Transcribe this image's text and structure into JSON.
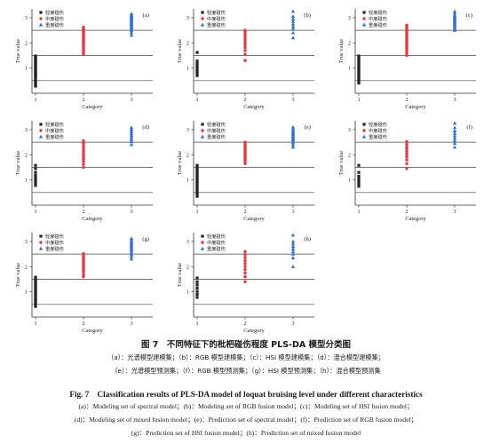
{
  "colors": {
    "light": "#222222",
    "moderate": "#e8343a",
    "severe": "#2f6fd8",
    "axis": "#333333",
    "ref_line": "#444444"
  },
  "legend": [
    "轻度碰伤",
    "中度碰伤",
    "重度碰伤"
  ],
  "chart_data": [
    {
      "type": "scatter",
      "panel": "(a)",
      "xlabel": "Category",
      "ylabel": "True value",
      "categories": [
        "1",
        "2",
        "3"
      ],
      "ylim": [
        0,
        3.35
      ],
      "yticks": [
        "1",
        "2",
        "3"
      ],
      "reference_lines": [
        0.5,
        1.5,
        2.5
      ],
      "legend": [
        "轻度碰伤",
        "中度碰伤",
        "重度碰伤"
      ],
      "series": [
        {
          "name": "轻度碰伤",
          "x": 1,
          "values": [
            0.28,
            0.35,
            0.42,
            0.48,
            0.53,
            0.58,
            0.62,
            0.66,
            0.7,
            0.74,
            0.78,
            0.82,
            0.86,
            0.9,
            0.94,
            0.98,
            1.02,
            1.06,
            1.1,
            1.14,
            1.18,
            1.22,
            1.26,
            1.3,
            1.34,
            1.38,
            1.42,
            1.45,
            1.48
          ]
        },
        {
          "name": "中度碰伤",
          "x": 2,
          "values": [
            1.55,
            1.63,
            1.72,
            1.8,
            1.86,
            1.92,
            1.97,
            2.02,
            2.06,
            2.1,
            2.14,
            2.18,
            2.22,
            2.26,
            2.3,
            2.34,
            2.38,
            2.42,
            2.46,
            2.5,
            2.54,
            2.58,
            2.62
          ]
        },
        {
          "name": "重度碰伤",
          "x": 3,
          "values": [
            2.3,
            2.4,
            2.48,
            2.55,
            2.6,
            2.65,
            2.7,
            2.74,
            2.78,
            2.82,
            2.86,
            2.9,
            2.94,
            2.98,
            3.02,
            3.06,
            3.1,
            3.16
          ]
        }
      ]
    },
    {
      "type": "scatter",
      "panel": "(b)",
      "xlabel": "Category",
      "ylabel": "True value",
      "categories": [
        "1",
        "2",
        "3"
      ],
      "ylim": [
        0,
        3.35
      ],
      "yticks": [
        "1",
        "2",
        "3"
      ],
      "reference_lines": [
        0.5,
        1.5,
        2.5
      ],
      "legend": [
        "轻度碰伤",
        "中度碰伤",
        "重度碰伤"
      ],
      "series": [
        {
          "name": "轻度碰伤",
          "x": 1,
          "values": [
            0.7,
            0.8,
            0.9,
            1.0,
            1.08,
            1.18,
            1.28,
            1.62
          ]
        },
        {
          "name": "中度碰伤",
          "x": 2,
          "values": [
            1.3,
            1.55,
            1.7,
            1.82,
            1.92,
            2.02,
            2.12,
            2.22,
            2.32,
            2.42,
            2.5
          ]
        },
        {
          "name": "重度碰伤",
          "x": 3,
          "values": [
            2.2,
            2.4,
            2.55,
            2.65,
            2.75,
            2.85,
            2.95,
            3.05,
            3.25
          ]
        }
      ]
    },
    {
      "type": "scatter",
      "panel": "(c)",
      "xlabel": "Category",
      "ylabel": "True value",
      "categories": [
        "1",
        "2",
        "3"
      ],
      "ylim": [
        0,
        3.35
      ],
      "yticks": [
        "1",
        "2",
        "3"
      ],
      "reference_lines": [
        0.5,
        1.5,
        2.5
      ],
      "legend": [
        "轻度碰伤",
        "中度碰伤",
        "重度碰伤"
      ],
      "series": [
        {
          "name": "轻度碰伤",
          "x": 1,
          "values": [
            0.4,
            0.46,
            0.52,
            0.58,
            0.64,
            0.7,
            0.76,
            0.82,
            0.88,
            0.94,
            1.0,
            1.06,
            1.12,
            1.18,
            1.24,
            1.3,
            1.36,
            1.42,
            1.48
          ]
        },
        {
          "name": "中度碰伤",
          "x": 2,
          "values": [
            1.5,
            1.58,
            1.66,
            1.74,
            1.8,
            1.86,
            1.92,
            1.98,
            2.04,
            2.1,
            2.16,
            2.22,
            2.28,
            2.34,
            2.4,
            2.46,
            2.52,
            2.58,
            2.64,
            2.7
          ]
        },
        {
          "name": "重度碰伤",
          "x": 3,
          "values": [
            2.5,
            2.58,
            2.64,
            2.7,
            2.75,
            2.8,
            2.85,
            2.9,
            2.95,
            3.0,
            3.05,
            3.1,
            3.18,
            3.25
          ]
        }
      ]
    },
    {
      "type": "scatter",
      "panel": "(d)",
      "xlabel": "Category",
      "ylabel": "True value",
      "categories": [
        "1",
        "2",
        "3"
      ],
      "ylim": [
        0,
        3.35
      ],
      "yticks": [
        "1",
        "2",
        "3"
      ],
      "reference_lines": [
        0.5,
        1.5,
        2.5
      ],
      "legend": [
        "轻度碰伤",
        "中度碰伤",
        "重度碰伤"
      ],
      "series": [
        {
          "name": "轻度碰伤",
          "x": 1,
          "values": [
            0.78,
            0.88,
            0.98,
            1.08,
            1.18,
            1.3,
            1.45,
            1.58
          ]
        },
        {
          "name": "中度碰伤",
          "x": 2,
          "values": [
            1.5,
            1.62,
            1.74,
            1.84,
            1.94,
            2.04,
            2.14,
            2.24,
            2.34,
            2.44,
            2.56
          ]
        },
        {
          "name": "重度碰伤",
          "x": 3,
          "values": [
            2.4,
            2.52,
            2.6,
            2.68,
            2.76,
            2.84,
            2.92,
            3.0,
            3.08
          ]
        }
      ]
    },
    {
      "type": "scatter",
      "panel": "(e)",
      "xlabel": "Category",
      "ylabel": "True value",
      "categories": [
        "1",
        "2",
        "3"
      ],
      "ylim": [
        0,
        3.35
      ],
      "yticks": [
        "1",
        "2",
        "3"
      ],
      "reference_lines": [
        0.5,
        1.5,
        2.5
      ],
      "legend": [
        "轻度碰伤",
        "中度碰伤",
        "重度碰伤"
      ],
      "series": [
        {
          "name": "轻度碰伤",
          "x": 1,
          "values": [
            0.35,
            0.45,
            0.55,
            0.62,
            0.68,
            0.74,
            0.8,
            0.86,
            0.92,
            0.98,
            1.04,
            1.1,
            1.16,
            1.22,
            1.28,
            1.34,
            1.4,
            1.46,
            1.52,
            1.58
          ]
        },
        {
          "name": "中度碰伤",
          "x": 2,
          "values": [
            1.65,
            1.74,
            1.82,
            1.88,
            1.94,
            2.0,
            2.06,
            2.12,
            2.18,
            2.24,
            2.3,
            2.36,
            2.42,
            2.5
          ]
        },
        {
          "name": "重度碰伤",
          "x": 3,
          "values": [
            2.3,
            2.4,
            2.48,
            2.55,
            2.6,
            2.65,
            2.7,
            2.75,
            2.8,
            2.85,
            2.9,
            2.95,
            3.02,
            3.1
          ]
        }
      ]
    },
    {
      "type": "scatter",
      "panel": "(f)",
      "xlabel": "Category",
      "ylabel": "True value",
      "categories": [
        "1",
        "2",
        "3"
      ],
      "ylim": [
        0,
        3.35
      ],
      "yticks": [
        "1",
        "2",
        "3"
      ],
      "reference_lines": [
        0.5,
        1.5,
        2.5
      ],
      "legend": [
        "轻度碰伤",
        "中度碰伤",
        "重度碰伤"
      ],
      "series": [
        {
          "name": "轻度碰伤",
          "x": 1,
          "values": [
            0.75,
            0.85,
            0.95,
            1.05,
            1.15,
            1.3,
            1.58
          ]
        },
        {
          "name": "中度碰伤",
          "x": 2,
          "values": [
            1.45,
            1.65,
            1.8,
            1.92,
            2.02,
            2.12,
            2.22,
            2.32,
            2.42,
            2.52
          ]
        },
        {
          "name": "重度碰伤",
          "x": 3,
          "values": [
            2.3,
            2.45,
            2.55,
            2.65,
            2.75,
            2.85,
            2.95,
            3.08,
            3.25
          ]
        }
      ]
    },
    {
      "type": "scatter",
      "panel": "(g)",
      "xlabel": "Category",
      "ylabel": "True value",
      "categories": [
        "1",
        "2",
        "3"
      ],
      "ylim": [
        0,
        3.35
      ],
      "yticks": [
        "1",
        "2",
        "3"
      ],
      "reference_lines": [
        0.5,
        1.5,
        2.5
      ],
      "legend": [
        "轻度碰伤",
        "中度碰伤",
        "重度碰伤"
      ],
      "series": [
        {
          "name": "轻度碰伤",
          "x": 1,
          "values": [
            0.42,
            0.5,
            0.58,
            0.64,
            0.7,
            0.76,
            0.82,
            0.88,
            0.94,
            1.0,
            1.06,
            1.12,
            1.18,
            1.24,
            1.3,
            1.36,
            1.42,
            1.5,
            1.58
          ]
        },
        {
          "name": "中度碰伤",
          "x": 2,
          "values": [
            1.6,
            1.7,
            1.8,
            1.88,
            1.95,
            2.02,
            2.08,
            2.14,
            2.2,
            2.26,
            2.32,
            2.38,
            2.44,
            2.52
          ]
        },
        {
          "name": "重度碰伤",
          "x": 3,
          "values": [
            2.3,
            2.4,
            2.48,
            2.55,
            2.62,
            2.68,
            2.74,
            2.8,
            2.86,
            2.92,
            2.98,
            3.05,
            3.12
          ]
        }
      ]
    },
    {
      "type": "scatter",
      "panel": "(h)",
      "xlabel": "Category",
      "ylabel": "True value",
      "categories": [
        "1",
        "2",
        "3"
      ],
      "ylim": [
        0,
        3.35
      ],
      "yticks": [
        "1",
        "2",
        "3"
      ],
      "reference_lines": [
        0.5,
        1.5,
        2.5
      ],
      "legend": [
        "轻度碰伤",
        "中度碰伤",
        "重度碰伤"
      ],
      "series": [
        {
          "name": "轻度碰伤",
          "x": 1,
          "values": [
            0.78,
            0.9,
            1.02,
            1.15,
            1.28,
            1.4,
            1.55
          ]
        },
        {
          "name": "中度碰伤",
          "x": 2,
          "values": [
            1.4,
            1.6,
            1.75,
            1.88,
            2.0,
            2.12,
            2.24,
            2.36,
            2.48,
            2.6
          ]
        },
        {
          "name": "重度碰伤",
          "x": 3,
          "values": [
            2.0,
            2.35,
            2.5,
            2.6,
            2.7,
            2.8,
            2.9,
            3.0,
            3.25
          ]
        }
      ]
    }
  ],
  "caption": {
    "cn_title": "图 7　不同特征下的枇杷碰伤程度 PLS-DA 模型分类图",
    "cn_lines": [
      "（a）：光谱模型建模集；（b）：RGB 模型建模集；（c）：HSI 模型建模集；（d）：混合模型建模集；",
      "（e）：光谱模型预测集；（f）：RGB 模型预测集；（g）：HSI 模型预测集；（h）：混合模型预测集"
    ],
    "en_title": "Fig. 7　Classification results of PLS-DA model of loquat bruising level under different characteristics",
    "en_lines": [
      "(a)：Modeling set of spectral model；(b)：Modeling set of RGB fusion model；(c)：Modeling set of HSI fusion model；",
      "(d)：Modeling set of mixed fusion model；(e)：Prediction set of spectral model；(f)：Prediction set of RGB fusion model；",
      "(g)：Prediction set of HSI fusion model；(h)：Prediction set of mixed fusion model"
    ]
  }
}
